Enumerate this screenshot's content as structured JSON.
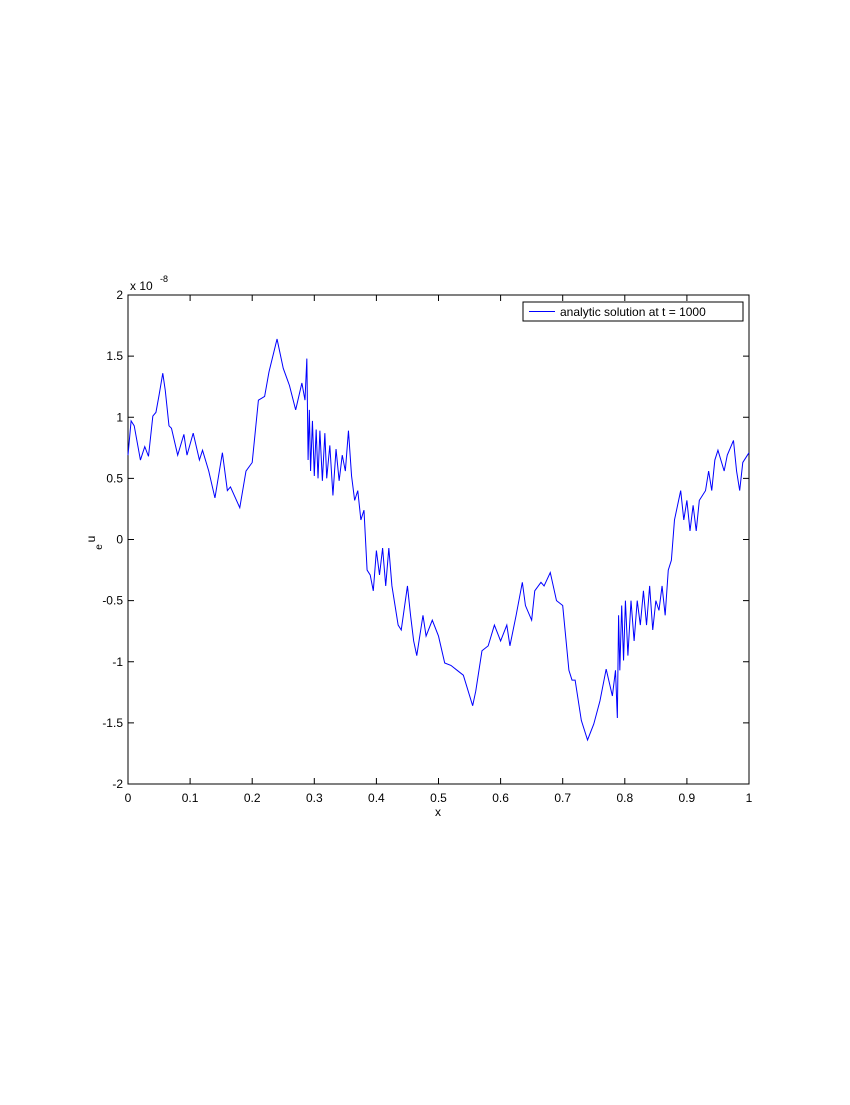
{
  "chart_data": {
    "type": "line",
    "xlabel": "x",
    "ylabel": {
      "text": "u",
      "subscript": "e"
    },
    "y_multiplier": {
      "base": "x 10",
      "exponent": "-8"
    },
    "xlim": [
      0,
      1
    ],
    "xticks": [
      0,
      0.1,
      0.2,
      0.3,
      0.4,
      0.5,
      0.6,
      0.7,
      0.8,
      0.9,
      1
    ],
    "ylim": [
      -2,
      2
    ],
    "yticks": [
      -2,
      -1.5,
      -1,
      -0.5,
      0,
      0.5,
      1,
      1.5,
      2
    ],
    "legend": "top-right",
    "x": [
      0,
      0.005,
      0.01,
      0.02,
      0.027,
      0.033,
      0.04,
      0.045,
      0.05,
      0.056,
      0.06,
      0.066,
      0.07,
      0.08,
      0.09,
      0.095,
      0.105,
      0.115,
      0.12,
      0.13,
      0.14,
      0.152,
      0.16,
      0.165,
      0.18,
      0.19,
      0.2,
      0.21,
      0.22,
      0.227,
      0.24,
      0.25,
      0.26,
      0.27,
      0.28,
      0.285,
      0.288,
      0.29,
      0.292,
      0.294,
      0.297,
      0.3,
      0.303,
      0.306,
      0.309,
      0.313,
      0.317,
      0.32,
      0.325,
      0.33,
      0.335,
      0.34,
      0.345,
      0.35,
      0.355,
      0.36,
      0.365,
      0.37,
      0.375,
      0.38,
      0.385,
      0.39,
      0.395,
      0.4,
      0.405,
      0.41,
      0.415,
      0.42,
      0.425,
      0.43,
      0.435,
      0.44,
      0.45,
      0.455,
      0.46,
      0.465,
      0.475,
      0.48,
      0.49,
      0.5,
      0.51,
      0.52,
      0.53,
      0.54,
      0.555,
      0.56,
      0.57,
      0.58,
      0.59,
      0.6,
      0.61,
      0.615,
      0.625,
      0.635,
      0.64,
      0.65,
      0.655,
      0.665,
      0.67,
      0.68,
      0.69,
      0.7,
      0.71,
      0.715,
      0.72,
      0.73,
      0.74,
      0.75,
      0.76,
      0.77,
      0.78,
      0.785,
      0.788,
      0.79,
      0.792,
      0.795,
      0.798,
      0.801,
      0.805,
      0.81,
      0.815,
      0.82,
      0.825,
      0.83,
      0.835,
      0.84,
      0.845,
      0.85,
      0.855,
      0.86,
      0.865,
      0.87,
      0.875,
      0.88,
      0.885,
      0.89,
      0.895,
      0.9,
      0.905,
      0.91,
      0.915,
      0.92,
      0.93,
      0.935,
      0.94,
      0.945,
      0.95,
      0.96,
      0.965,
      0.975,
      0.98,
      0.985,
      0.99,
      1
    ],
    "series": [
      {
        "name": "analytic solution at t = 1000",
        "color": "#0000ff",
        "values": [
          0.69,
          0.97,
          0.93,
          0.65,
          0.76,
          0.68,
          1.01,
          1.04,
          1.18,
          1.36,
          1.22,
          0.93,
          0.91,
          0.69,
          0.86,
          0.69,
          0.87,
          0.65,
          0.73,
          0.56,
          0.34,
          0.71,
          0.4,
          0.43,
          0.26,
          0.56,
          0.63,
          1.14,
          1.17,
          1.37,
          1.64,
          1.4,
          1.26,
          1.06,
          1.28,
          1.14,
          1.48,
          0.65,
          1.06,
          0.56,
          0.97,
          0.52,
          0.9,
          0.5,
          0.89,
          0.48,
          0.87,
          0.5,
          0.77,
          0.36,
          0.74,
          0.48,
          0.69,
          0.56,
          0.89,
          0.52,
          0.32,
          0.4,
          0.16,
          0.24,
          -0.25,
          -0.29,
          -0.42,
          -0.09,
          -0.29,
          -0.07,
          -0.38,
          -0.07,
          -0.38,
          -0.54,
          -0.7,
          -0.74,
          -0.38,
          -0.62,
          -0.83,
          -0.95,
          -0.62,
          -0.79,
          -0.66,
          -0.79,
          -1.01,
          -1.03,
          -1.07,
          -1.11,
          -1.36,
          -1.24,
          -0.91,
          -0.87,
          -0.7,
          -0.83,
          -0.7,
          -0.87,
          -0.62,
          -0.35,
          -0.54,
          -0.66,
          -0.42,
          -0.35,
          -0.38,
          -0.27,
          -0.5,
          -0.54,
          -1.07,
          -1.15,
          -1.15,
          -1.48,
          -1.64,
          -1.51,
          -1.32,
          -1.06,
          -1.28,
          -1.07,
          -1.46,
          -0.62,
          -1.07,
          -0.54,
          -0.99,
          -0.5,
          -0.95,
          -0.5,
          -0.83,
          -0.5,
          -0.7,
          -0.42,
          -0.7,
          -0.38,
          -0.74,
          -0.5,
          -0.58,
          -0.38,
          -0.62,
          -0.25,
          -0.17,
          0.16,
          0.28,
          0.4,
          0.16,
          0.32,
          0.07,
          0.28,
          0.07,
          0.32,
          0.4,
          0.56,
          0.4,
          0.65,
          0.73,
          0.56,
          0.69,
          0.81,
          0.56,
          0.4,
          0.63,
          0.71
        ]
      }
    ]
  }
}
